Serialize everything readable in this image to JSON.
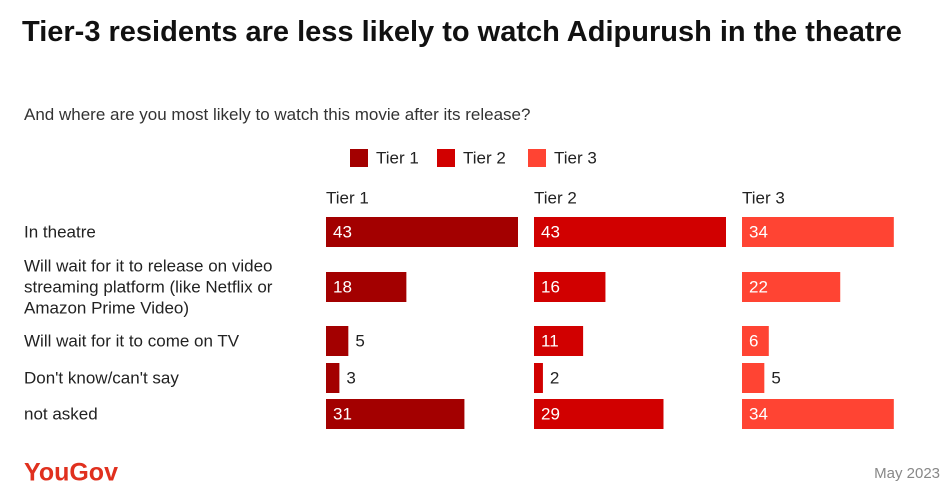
{
  "chart_data": {
    "type": "bar",
    "orientation": "horizontal",
    "title": "Tier-3 residents are less likely to watch Adipurush in the theatre",
    "subtitle": "And where are you most likely to watch this movie after its release?",
    "categories": [
      "In theatre",
      "Will wait for it to release on video streaming platform (like Netflix or Amazon Prime Video)",
      "Will wait for it to come on TV",
      "Don't know/can't say",
      "not asked"
    ],
    "series": [
      {
        "name": "Tier 1",
        "color": "#a30000",
        "values": [
          43,
          18,
          5,
          3,
          31
        ]
      },
      {
        "name": "Tier 2",
        "color": "#d10000",
        "values": [
          43,
          16,
          11,
          2,
          29
        ]
      },
      {
        "name": "Tier 3",
        "color": "#ff4433",
        "values": [
          34,
          22,
          6,
          5,
          34
        ]
      }
    ],
    "brand": "YouGov",
    "date": "May 2023"
  }
}
